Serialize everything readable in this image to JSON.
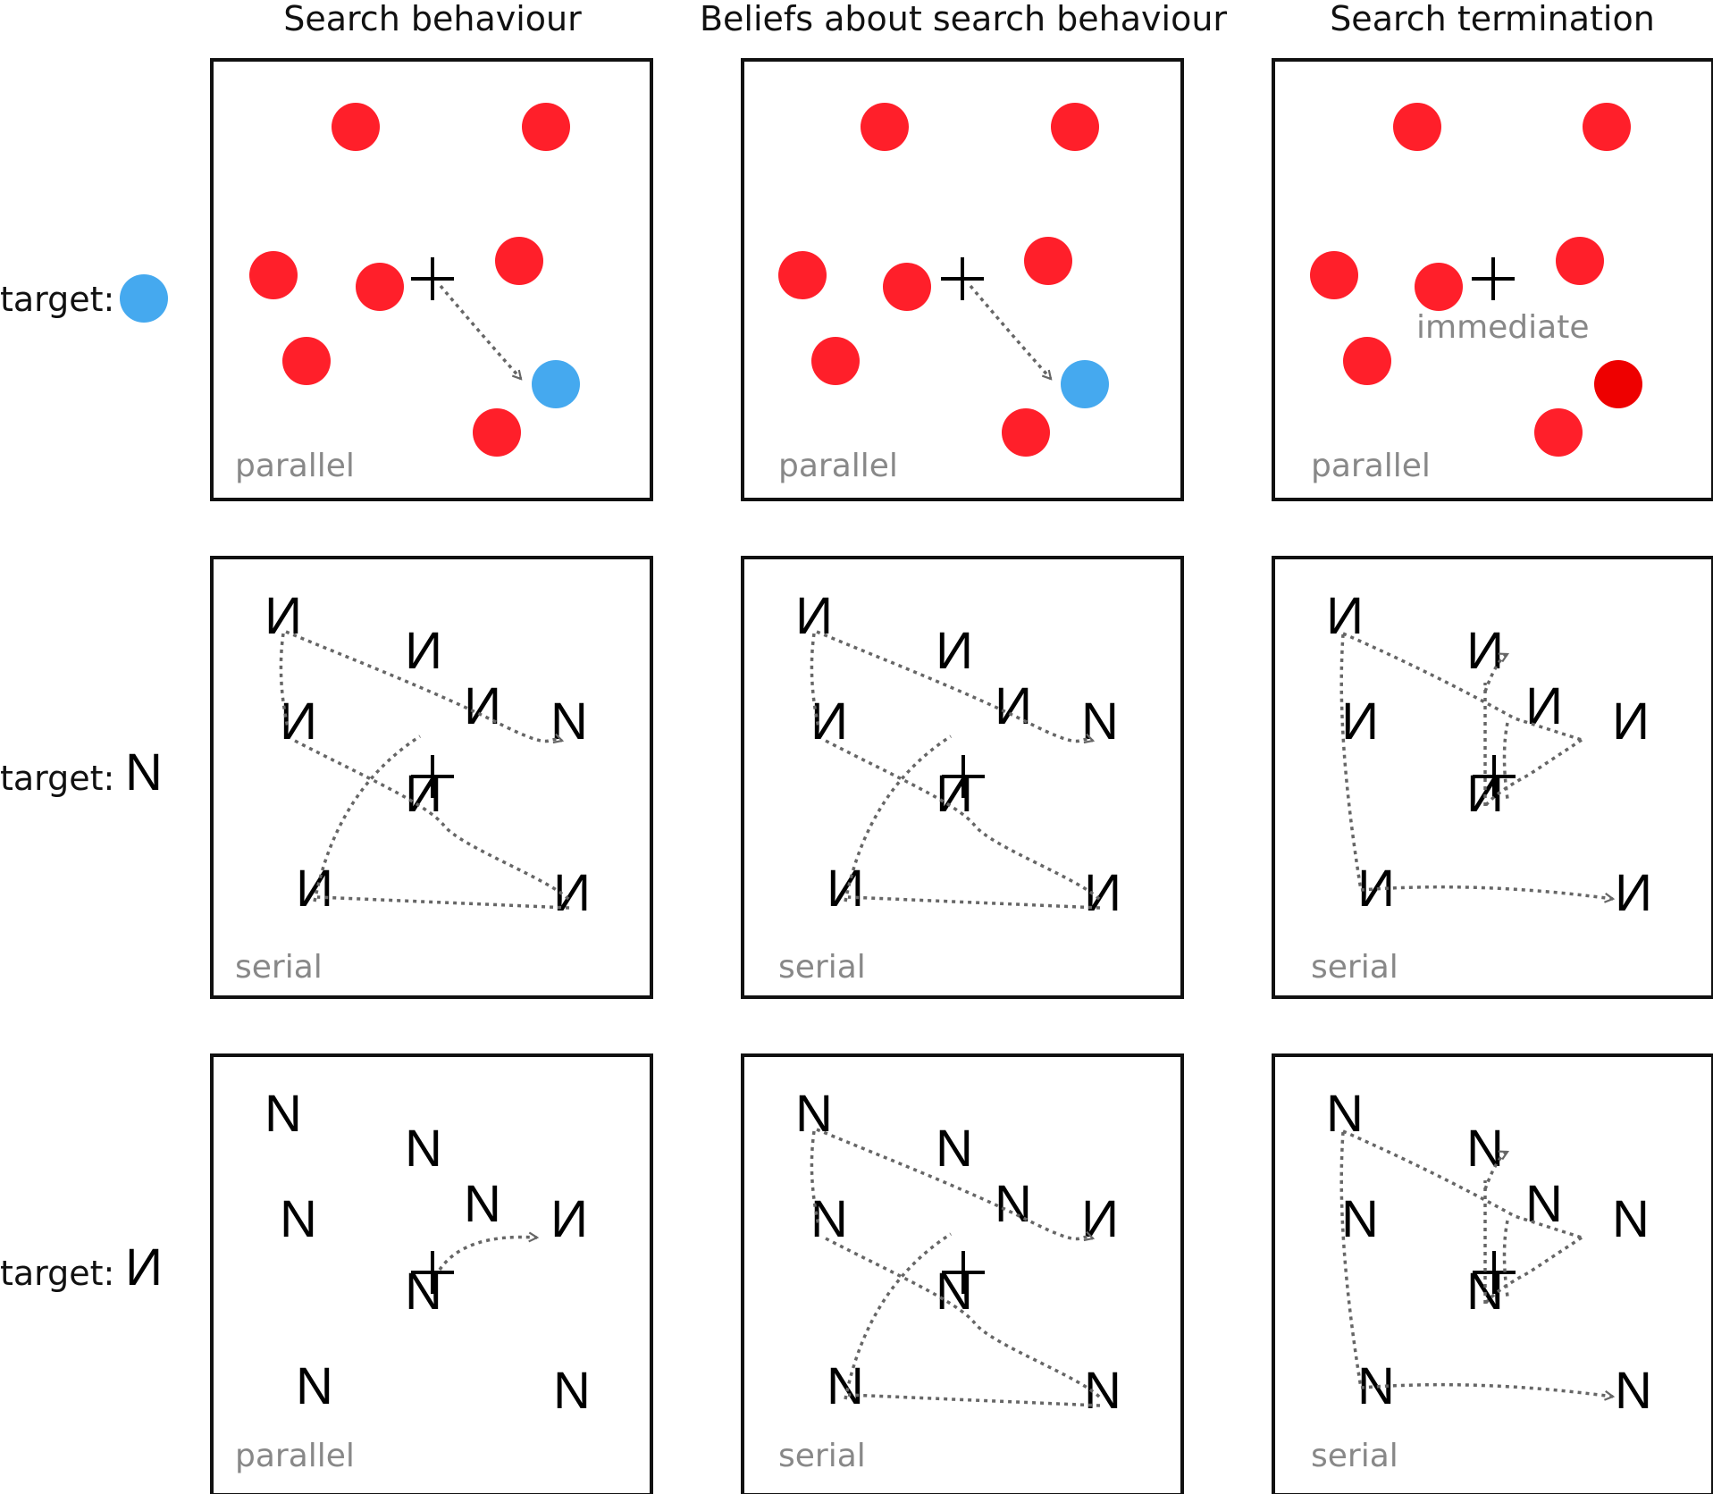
{
  "columns": [
    {
      "title": "Search behaviour"
    },
    {
      "title": "Beliefs about search behaviour"
    },
    {
      "title": "Search termination"
    }
  ],
  "rows": [
    {
      "label": "target:",
      "target": {
        "type": "disc",
        "color": "#45a9ef"
      }
    },
    {
      "label": "target:",
      "target": {
        "type": "letter",
        "glyph": "N",
        "mirrored": false
      }
    },
    {
      "label": "target:",
      "target": {
        "type": "letter",
        "glyph": "N",
        "mirrored": true
      }
    }
  ],
  "colors": {
    "distractor": "#ff1f2a",
    "target": "#45a9ef",
    "last_checked": "#ee0000",
    "path": "#666666"
  },
  "panels": [
    {
      "mode": "parallel",
      "note": ""
    },
    {
      "mode": "parallel",
      "note": ""
    },
    {
      "mode": "parallel",
      "note": "immediate"
    },
    {
      "mode": "serial",
      "note": ""
    },
    {
      "mode": "serial",
      "note": ""
    },
    {
      "mode": "serial",
      "note": ""
    },
    {
      "mode": "parallel",
      "note": ""
    },
    {
      "mode": "serial",
      "note": ""
    },
    {
      "mode": "serial",
      "note": ""
    }
  ]
}
